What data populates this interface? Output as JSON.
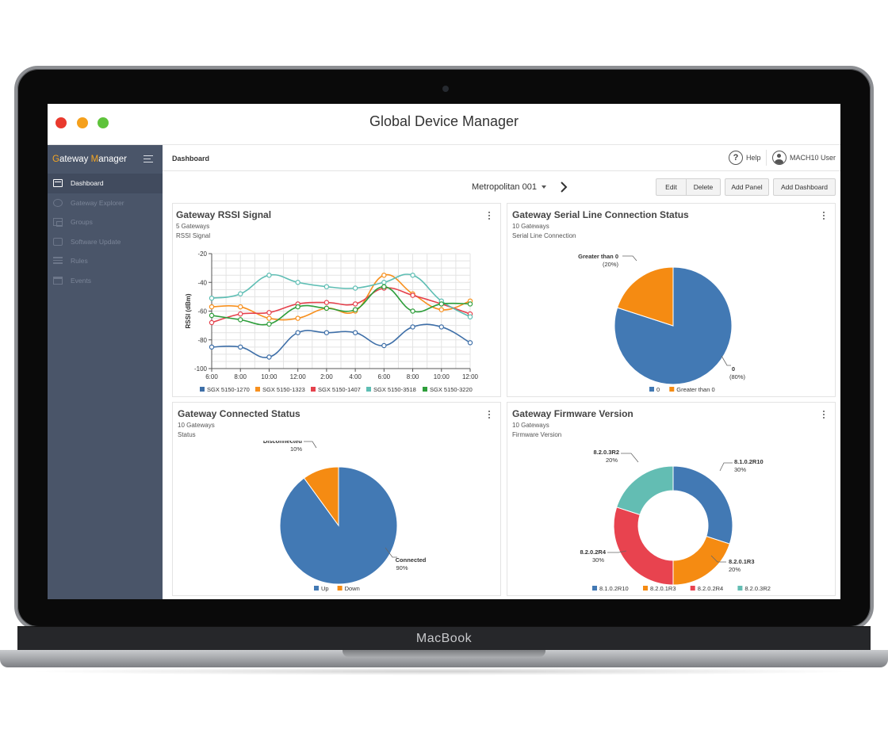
{
  "device": {
    "brand": "MacBook"
  },
  "window": {
    "title": "Global Device Manager"
  },
  "sidebar": {
    "brand_prefix": "G",
    "brand_mid": "ateway ",
    "brand_hl": "M",
    "brand_suffix": "anager",
    "items": [
      {
        "label": "Dashboard",
        "icon": "dashboard-icon",
        "active": true
      },
      {
        "label": "Gateway Explorer",
        "icon": "explorer-icon"
      },
      {
        "label": "Groups",
        "icon": "groups-icon"
      },
      {
        "label": "Software Update",
        "icon": "software-update-icon"
      },
      {
        "label": "Rules",
        "icon": "rules-icon"
      },
      {
        "label": "Events",
        "icon": "calendar-icon"
      }
    ]
  },
  "header": {
    "breadcrumb": "Dashboard",
    "help_label": "Help",
    "user_name": "MACH10 User"
  },
  "toolbar": {
    "dashboard_name": "Metropolitan 001",
    "edit_label": "Edit",
    "delete_label": "Delete",
    "add_panel_label": "Add Panel",
    "add_dashboard_label": "Add Dashboard"
  },
  "panels": {
    "rssi": {
      "title": "Gateway RSSI Signal",
      "sub1": "5 Gateways",
      "sub2": "RSSI Signal"
    },
    "serial": {
      "title": "Gateway Serial Line Connection Status",
      "sub1": "10 Gateways",
      "sub2": "Serial Line Connection"
    },
    "connected": {
      "title": "Gateway Connected Status",
      "sub1": "10 Gateways",
      "sub2": "Status"
    },
    "firmware": {
      "title": "Gateway Firmware Version",
      "sub1": "10 Gateways",
      "sub2": "Firmware Version"
    }
  },
  "chart_data": [
    {
      "type": "line",
      "ylabel": "RSSI (dBm)",
      "ylim": [
        -100,
        -20
      ],
      "yticks": [
        -20,
        -40,
        -60,
        -80,
        -100
      ],
      "x": [
        "6:00",
        "7:00",
        "8:00",
        "9:00",
        "10:00",
        "11:00",
        "12:00",
        "1:00",
        "2:00",
        "3:00",
        "4:00",
        "5:00",
        "6:00",
        "7:00",
        "8:00",
        "9:00",
        "10:00",
        "11:00",
        "12:00"
      ],
      "xtick_labels": [
        "6:00",
        "8:00",
        "10:00",
        "12:00",
        "2:00",
        "4:00",
        "6:00",
        "8:00",
        "10:00",
        "12:00"
      ],
      "grid": true,
      "legend": "bottom",
      "series": [
        {
          "name": "SGX 5150-1270",
          "color": "#3e6fa8",
          "values": [
            -85,
            null,
            -85,
            null,
            -92,
            null,
            -75,
            null,
            -75,
            null,
            -75,
            null,
            -84,
            null,
            -71,
            null,
            -71,
            null,
            -82
          ]
        },
        {
          "name": "SGX 5150-1323",
          "color": "#f7901e",
          "values": [
            -57,
            null,
            -57,
            null,
            -65,
            null,
            -65,
            null,
            -58,
            null,
            -60,
            null,
            -35,
            null,
            -48,
            null,
            -59,
            null,
            -53
          ]
        },
        {
          "name": "SGX 5150-1407",
          "color": "#e5424d",
          "values": [
            -68,
            null,
            -62,
            null,
            -61,
            null,
            -55,
            null,
            -54,
            null,
            -55,
            null,
            -44,
            null,
            -49,
            null,
            -55,
            null,
            -62
          ]
        },
        {
          "name": "SGX 5150-3518",
          "color": "#5ebeb4",
          "values": [
            -51,
            null,
            -48,
            null,
            -35,
            null,
            -40,
            null,
            -43,
            null,
            -44,
            null,
            -40,
            null,
            -35,
            null,
            -53,
            null,
            -64
          ]
        },
        {
          "name": "SGX 5150-3220",
          "color": "#2e9e3b",
          "values": [
            -63,
            null,
            -66,
            null,
            -69,
            null,
            -57,
            null,
            -58,
            null,
            -59,
            null,
            -43,
            null,
            -60,
            null,
            -55,
            null,
            -55
          ]
        }
      ]
    },
    {
      "type": "pie",
      "slices": [
        {
          "name": "0",
          "value": 80,
          "label": "0",
          "pct_label": "(80%)",
          "color": "#4279b4"
        },
        {
          "name": "Greater than 0",
          "value": 20,
          "label": "Greater than 0",
          "pct_label": "(20%)",
          "color": "#f58b12"
        }
      ],
      "legend": "bottom"
    },
    {
      "type": "pie",
      "slices": [
        {
          "name": "Up",
          "value": 90,
          "label": "Connected",
          "pct_label": "90%",
          "color": "#4279b4"
        },
        {
          "name": "Down",
          "value": 10,
          "label": "Disconnected",
          "pct_label": "10%",
          "color": "#f58b12"
        }
      ],
      "legend": "bottom"
    },
    {
      "type": "pie",
      "donut": true,
      "slices": [
        {
          "name": "8.1.0.2R10",
          "value": 30,
          "label": "8.1.0.2R10",
          "pct_label": "30%",
          "color": "#4279b4"
        },
        {
          "name": "8.2.0.1R3",
          "value": 20,
          "label": "8.2.0.1R3",
          "pct_label": "20%",
          "color": "#f58b12"
        },
        {
          "name": "8.2.0.2R4",
          "value": 30,
          "label": "8.2.0.2R4",
          "pct_label": "30%",
          "color": "#e8434f"
        },
        {
          "name": "8.2.0.3R2",
          "value": 20,
          "label": "8.2.0.3R2",
          "pct_label": "20%",
          "color": "#63bdb3"
        }
      ],
      "legend": "bottom"
    }
  ]
}
